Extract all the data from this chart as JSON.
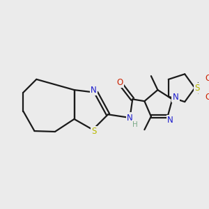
{
  "background_color": "#ebebeb",
  "bond_color": "#1a1a1a",
  "label_colors": {
    "S": "#b8b800",
    "N": "#1a1acc",
    "O": "#cc2200",
    "H": "#7aaa88",
    "C": "#1a1a1a"
  },
  "lw": 1.5,
  "fs": 8.0
}
